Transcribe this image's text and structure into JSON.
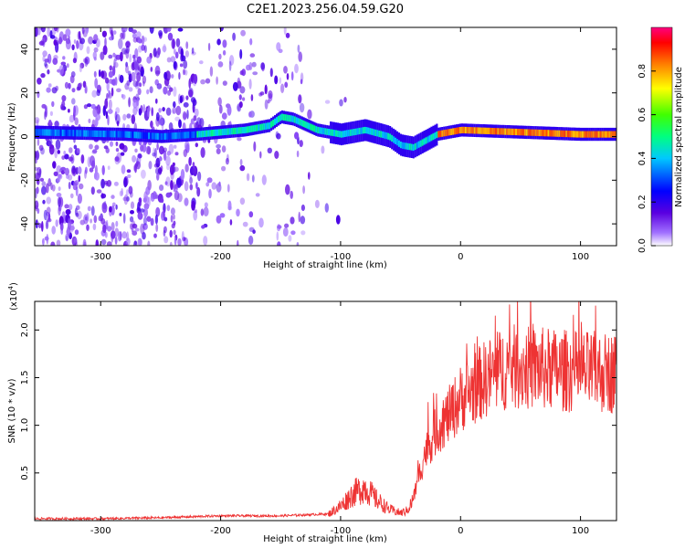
{
  "title": "C2E1.2023.256.04.59.G20",
  "colors": {
    "snr_line": "#ee3333",
    "axis": "#000000",
    "background": "#ffffff"
  },
  "spectrogram": {
    "type": "heatmap",
    "xlabel": "Height of straight line (km)",
    "ylabel": "Frequency (Hz)",
    "xlim": [
      -355,
      130
    ],
    "ylim": [
      -50,
      50
    ],
    "x_ticks": [
      -300,
      -200,
      -100,
      0,
      100
    ],
    "y_ticks": [
      -40,
      -20,
      0,
      20,
      40
    ],
    "colorbar": {
      "label": "Normalized spectral amplitude",
      "range": [
        0.0,
        1.0
      ],
      "ticks": [
        "0.0",
        "0.2",
        "0.4",
        "0.6",
        "0.8"
      ],
      "tick_values": [
        0.0,
        0.2,
        0.4,
        0.6,
        0.8
      ],
      "colormap": "rainbow"
    }
  },
  "snr_plot": {
    "type": "line",
    "xlabel": "Height of straight line (km)",
    "ylabel": "SNR (10 * v/v)",
    "scale_label": "(x10",
    "scale_exp": "4",
    "scale_close": ")",
    "xlim": [
      -355,
      130
    ],
    "ylim": [
      0,
      2.3
    ],
    "x_ticks": [
      -300,
      -200,
      -100,
      0,
      100
    ],
    "y_ticks": [
      "0.5",
      "1.0",
      "1.5",
      "2.0"
    ],
    "y_tick_values": [
      0.5,
      1.0,
      1.5,
      2.0
    ]
  },
  "chart_data": [
    {
      "type": "heatmap",
      "title": "C2E1.2023.256.04.59.G20",
      "xlabel": "Height of straight line (km)",
      "ylabel": "Frequency (Hz)",
      "xlim": [
        -355,
        130
      ],
      "ylim": [
        -50,
        50
      ],
      "colorbar_label": "Normalized spectral amplitude",
      "ridge": {
        "x": [
          -355,
          -280,
          -250,
          -220,
          -200,
          -180,
          -160,
          -150,
          -140,
          -120,
          -100,
          -80,
          -60,
          -50,
          -40,
          -30,
          -20,
          0,
          50,
          100,
          130
        ],
        "y": [
          2,
          1,
          0,
          1,
          2,
          3,
          5,
          9,
          8,
          3,
          1,
          3,
          0,
          -4,
          -5,
          -2,
          1,
          3,
          2,
          1,
          1
        ]
      }
    },
    {
      "type": "line",
      "xlabel": "Height of straight line (km)",
      "ylabel": "SNR (10 * v/v)",
      "xlim": [
        -355,
        130
      ],
      "ylim": [
        0,
        2.3
      ],
      "series": [
        {
          "x": [
            -355,
            -300,
            -250,
            -200,
            -150,
            -110,
            -100,
            -90,
            -80,
            -70,
            -60,
            -50,
            -45,
            -40,
            -35,
            -30,
            -20,
            -10,
            0,
            10,
            20,
            30,
            40,
            50,
            60,
            80,
            100,
            130
          ],
          "y": [
            0.02,
            0.02,
            0.03,
            0.05,
            0.05,
            0.07,
            0.15,
            0.28,
            0.35,
            0.22,
            0.12,
            0.08,
            0.1,
            0.2,
            0.45,
            0.7,
            0.95,
            1.1,
            1.28,
            1.38,
            1.48,
            1.55,
            1.62,
            1.6,
            1.6,
            1.58,
            1.56,
            1.55
          ]
        }
      ]
    }
  ]
}
